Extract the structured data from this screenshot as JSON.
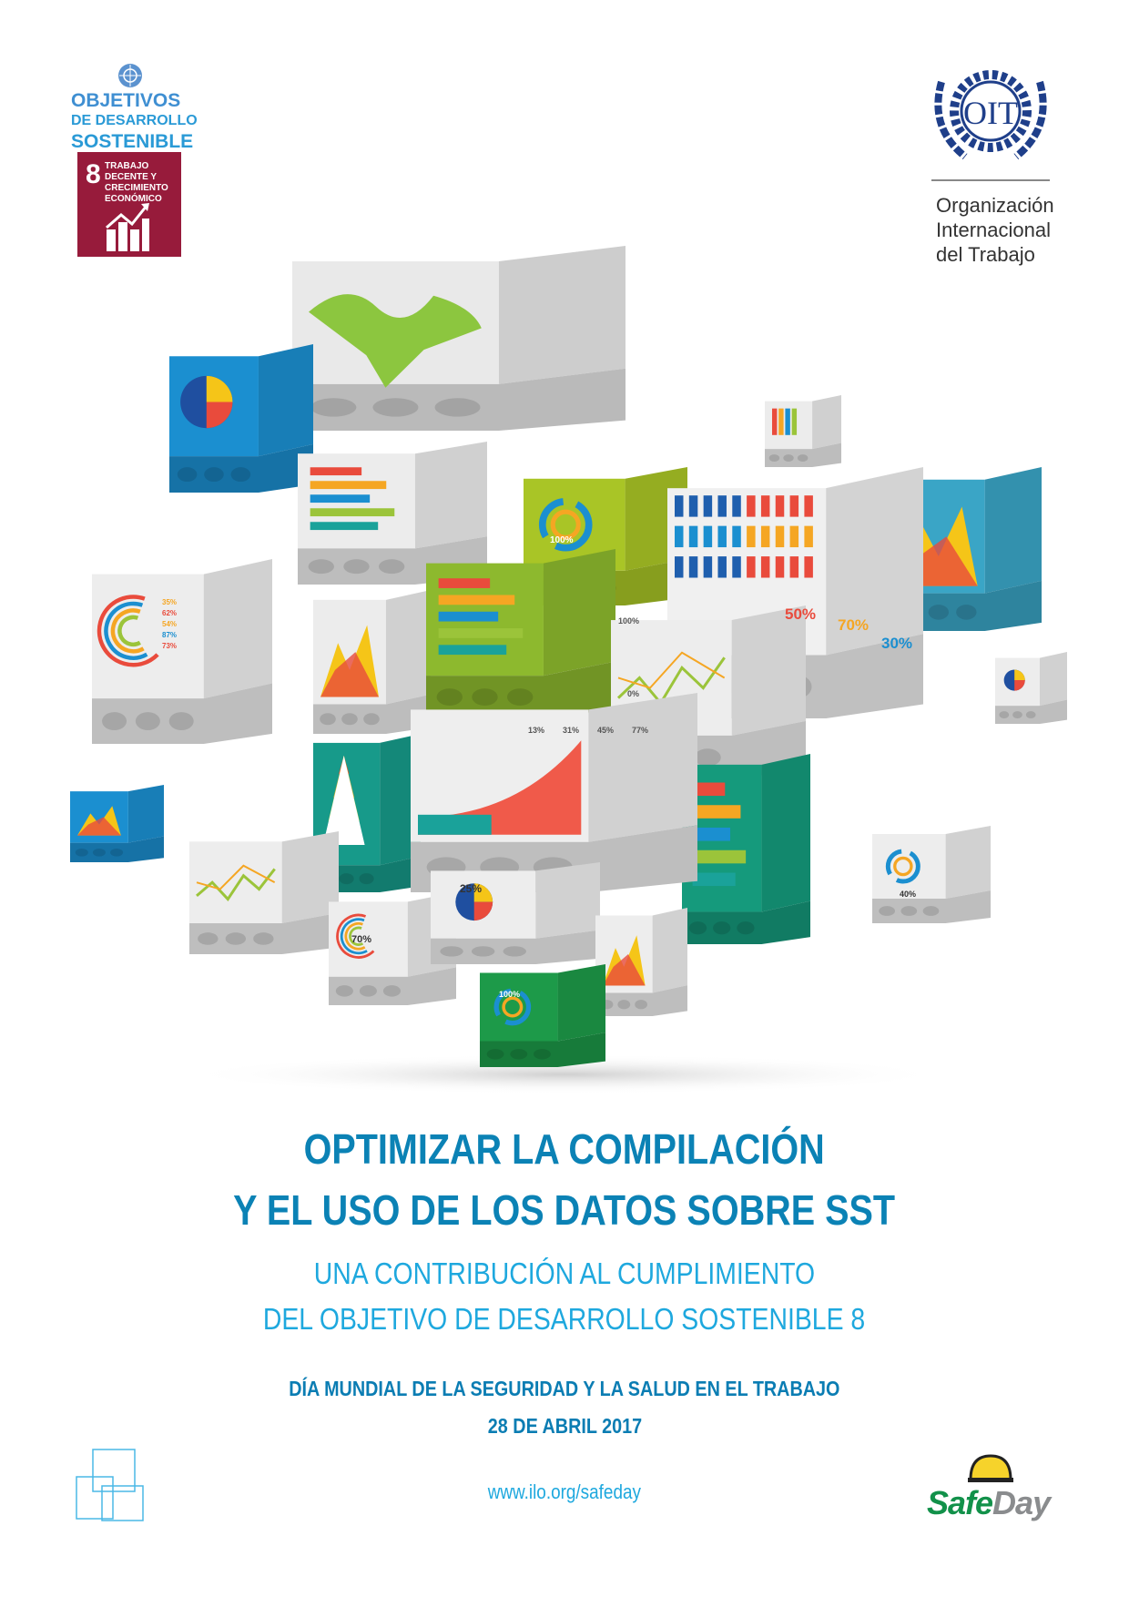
{
  "sdg_logo": {
    "line1": "OBJETIVOS",
    "line2": "DE DESARROLLO",
    "line3": "SOSTENIBLE",
    "goal_number": "8",
    "goal_text": "TRABAJO DECENTE Y CRECIMIENTO ECONÓMICO",
    "goal_color": "#971b3b",
    "icon": "rising-bar-chart-icon"
  },
  "oit_logo": {
    "emblem_text": "OIT",
    "name_line1": "Organización",
    "name_line2": "Internacional",
    "name_line3": "del Trabajo",
    "color": "#1f3f8a"
  },
  "illustration": {
    "labels": {
      "people_pct": [
        "50%",
        "70%",
        "30%"
      ],
      "donut_green": "100%",
      "line_chart_top": "100%",
      "line_chart_zero": "0%",
      "curve_chart": [
        "13%",
        "31%",
        "45%",
        "77%"
      ],
      "c_chart": "70%",
      "pie_chart": "25%",
      "donut_small_green": "100%",
      "donut_right": "40%",
      "c_legend": [
        "35%",
        "62%",
        "54%",
        "87%",
        "73%"
      ]
    }
  },
  "headline": {
    "line1": "OPTIMIZAR LA COMPILACIÓN",
    "line2": "Y EL USO DE LOS DATOS SOBRE SST"
  },
  "subtitle": {
    "line1": "UNA CONTRIBUCIÓN AL  CUMPLIMIENTO",
    "line2": "DEL OBJETIVO DE DESARROLLO SOSTENIBLE 8"
  },
  "event": {
    "name": "DÍA MUNDIAL DE LA SEGURIDAD Y LA SALUD EN EL TRABAJO",
    "date": "28 DE ABRIL 2017"
  },
  "footer": {
    "url": "www.ilo.org/safeday",
    "safeday_safe": "Safe",
    "safeday_day": "Day"
  },
  "colors": {
    "headline": "#0b82b5",
    "subtitle": "#1ea8de",
    "safeday_green": "#12914a",
    "safeday_gray": "#8a8c8e",
    "helmet_yellow": "#f6d32b"
  }
}
